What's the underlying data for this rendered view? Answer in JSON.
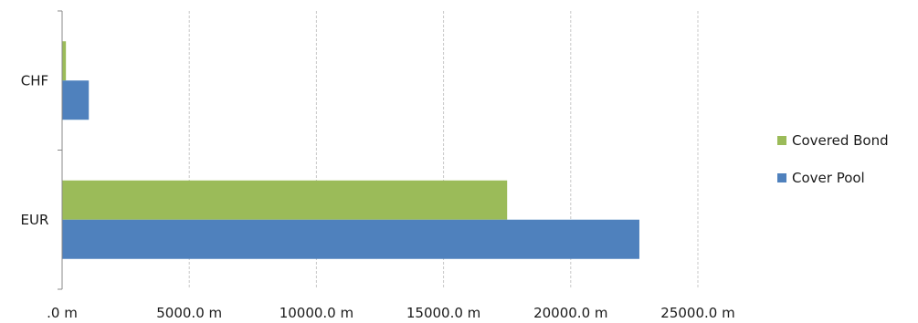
{
  "chart_data": {
    "type": "bar",
    "orientation": "horizontal",
    "categories": [
      "CHF",
      "EUR"
    ],
    "series": [
      {
        "name": "Covered Bond",
        "color": "#9bbb59",
        "values": [
          150,
          17500
        ]
      },
      {
        "name": "Cover Pool",
        "color": "#4f81bd",
        "values": [
          1050,
          22700
        ]
      }
    ],
    "xlim": [
      0,
      25000
    ],
    "x_ticks": [
      0,
      5000,
      10000,
      15000,
      20000,
      25000
    ],
    "x_tick_labels": [
      ".0 m",
      "5000.0 m",
      "10000.0 m",
      "15000.0 m",
      "20000.0 m",
      "25000.0 m"
    ],
    "legend_entries": [
      "Covered Bond",
      "Cover Pool"
    ],
    "legend_position": "right",
    "grid": "vertical, dashed",
    "title": "",
    "xlabel": "",
    "ylabel": ""
  }
}
